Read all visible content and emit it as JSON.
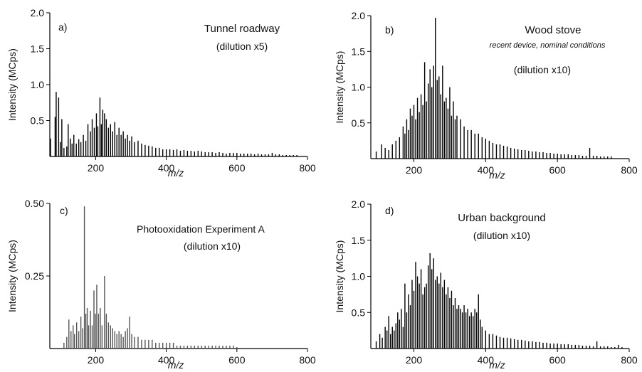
{
  "chart_data": [
    {
      "id": "a",
      "type": "bar",
      "panel_label": "a)",
      "title": "Tunnel roadway",
      "subtitle": "(dilution x5)",
      "note": "",
      "xlabel": "m/z",
      "ylabel": "Intensity (MCps)",
      "xlim": [
        70,
        800
      ],
      "ylim": [
        0,
        2.0
      ],
      "xticks": [
        200,
        400,
        600,
        800
      ],
      "yticks": [
        0.5,
        1.0,
        1.5,
        2.0
      ],
      "ytick_labels": [
        "0.5",
        "1.0",
        "1.5",
        "2.0"
      ],
      "color": "#000000",
      "peaks": [
        [
          72,
          0.25
        ],
        [
          85,
          0.55
        ],
        [
          88,
          0.9
        ],
        [
          95,
          0.82
        ],
        [
          100,
          0.2
        ],
        [
          104,
          0.52
        ],
        [
          110,
          0.12
        ],
        [
          118,
          0.14
        ],
        [
          122,
          0.45
        ],
        [
          128,
          0.25
        ],
        [
          133,
          0.18
        ],
        [
          138,
          0.3
        ],
        [
          145,
          0.18
        ],
        [
          152,
          0.24
        ],
        [
          158,
          0.2
        ],
        [
          165,
          0.3
        ],
        [
          172,
          0.22
        ],
        [
          178,
          0.45
        ],
        [
          185,
          0.35
        ],
        [
          190,
          0.52
        ],
        [
          196,
          0.4
        ],
        [
          202,
          0.6
        ],
        [
          206,
          0.42
        ],
        [
          212,
          0.82
        ],
        [
          216,
          0.45
        ],
        [
          220,
          0.65
        ],
        [
          225,
          0.6
        ],
        [
          230,
          0.52
        ],
        [
          236,
          0.4
        ],
        [
          242,
          0.45
        ],
        [
          248,
          0.35
        ],
        [
          254,
          0.48
        ],
        [
          260,
          0.3
        ],
        [
          266,
          0.4
        ],
        [
          272,
          0.3
        ],
        [
          278,
          0.35
        ],
        [
          284,
          0.25
        ],
        [
          290,
          0.3
        ],
        [
          296,
          0.22
        ],
        [
          302,
          0.28
        ],
        [
          310,
          0.2
        ],
        [
          320,
          0.22
        ],
        [
          330,
          0.18
        ],
        [
          340,
          0.16
        ],
        [
          350,
          0.15
        ],
        [
          360,
          0.14
        ],
        [
          370,
          0.12
        ],
        [
          380,
          0.12
        ],
        [
          390,
          0.1
        ],
        [
          400,
          0.1
        ],
        [
          410,
          0.1
        ],
        [
          420,
          0.09
        ],
        [
          430,
          0.1
        ],
        [
          440,
          0.08
        ],
        [
          450,
          0.09
        ],
        [
          460,
          0.08
        ],
        [
          470,
          0.08
        ],
        [
          480,
          0.07
        ],
        [
          490,
          0.08
        ],
        [
          500,
          0.07
        ],
        [
          510,
          0.06
        ],
        [
          520,
          0.06
        ],
        [
          530,
          0.06
        ],
        [
          540,
          0.05
        ],
        [
          550,
          0.06
        ],
        [
          560,
          0.05
        ],
        [
          570,
          0.04
        ],
        [
          580,
          0.05
        ],
        [
          590,
          0.05
        ],
        [
          600,
          0.05
        ],
        [
          610,
          0.04
        ],
        [
          620,
          0.04
        ],
        [
          630,
          0.04
        ],
        [
          640,
          0.04
        ],
        [
          650,
          0.03
        ],
        [
          660,
          0.04
        ],
        [
          670,
          0.03
        ],
        [
          680,
          0.03
        ],
        [
          690,
          0.03
        ],
        [
          700,
          0.05
        ],
        [
          710,
          0.03
        ],
        [
          720,
          0.03
        ],
        [
          730,
          0.02
        ],
        [
          740,
          0.02
        ],
        [
          750,
          0.02
        ],
        [
          760,
          0.02
        ],
        [
          770,
          0.02
        ]
      ]
    },
    {
      "id": "b",
      "type": "bar",
      "panel_label": "b)",
      "title": "Wood stove",
      "subtitle": "(dilution x10)",
      "note": "recent device, nominal conditions",
      "xlabel": "m/z",
      "ylabel": "Intensity (MCps)",
      "xlim": [
        80,
        800
      ],
      "ylim": [
        0,
        2.0
      ],
      "xticks": [
        200,
        400,
        600,
        800
      ],
      "yticks": [
        0.5,
        1.0,
        1.5,
        2.0
      ],
      "ytick_labels": [
        "0.5",
        "1.0",
        "1.5",
        "2.0"
      ],
      "color": "#000000",
      "peaks": [
        [
          95,
          0.1
        ],
        [
          110,
          0.2
        ],
        [
          120,
          0.15
        ],
        [
          130,
          0.12
        ],
        [
          140,
          0.2
        ],
        [
          150,
          0.25
        ],
        [
          160,
          0.3
        ],
        [
          170,
          0.45
        ],
        [
          175,
          0.35
        ],
        [
          180,
          0.55
        ],
        [
          185,
          0.4
        ],
        [
          190,
          0.7
        ],
        [
          195,
          0.6
        ],
        [
          200,
          0.75
        ],
        [
          205,
          0.55
        ],
        [
          210,
          0.85
        ],
        [
          215,
          0.65
        ],
        [
          220,
          0.9
        ],
        [
          225,
          0.75
        ],
        [
          230,
          1.35
        ],
        [
          235,
          0.8
        ],
        [
          240,
          1.05
        ],
        [
          245,
          1.25
        ],
        [
          250,
          1.0
        ],
        [
          255,
          1.3
        ],
        [
          260,
          1.97
        ],
        [
          265,
          1.1
        ],
        [
          270,
          1.15
        ],
        [
          275,
          0.9
        ],
        [
          280,
          1.3
        ],
        [
          285,
          0.8
        ],
        [
          290,
          0.85
        ],
        [
          295,
          0.7
        ],
        [
          300,
          1.0
        ],
        [
          305,
          0.6
        ],
        [
          310,
          0.8
        ],
        [
          315,
          0.55
        ],
        [
          320,
          0.6
        ],
        [
          330,
          0.55
        ],
        [
          340,
          0.45
        ],
        [
          350,
          0.4
        ],
        [
          360,
          0.4
        ],
        [
          370,
          0.35
        ],
        [
          380,
          0.35
        ],
        [
          390,
          0.3
        ],
        [
          400,
          0.28
        ],
        [
          410,
          0.25
        ],
        [
          420,
          0.22
        ],
        [
          430,
          0.2
        ],
        [
          440,
          0.2
        ],
        [
          450,
          0.18
        ],
        [
          460,
          0.17
        ],
        [
          470,
          0.15
        ],
        [
          480,
          0.14
        ],
        [
          490,
          0.13
        ],
        [
          500,
          0.12
        ],
        [
          510,
          0.12
        ],
        [
          520,
          0.11
        ],
        [
          530,
          0.1
        ],
        [
          540,
          0.1
        ],
        [
          550,
          0.09
        ],
        [
          560,
          0.09
        ],
        [
          570,
          0.08
        ],
        [
          580,
          0.08
        ],
        [
          590,
          0.07
        ],
        [
          600,
          0.07
        ],
        [
          610,
          0.06
        ],
        [
          620,
          0.06
        ],
        [
          630,
          0.06
        ],
        [
          640,
          0.05
        ],
        [
          650,
          0.05
        ],
        [
          660,
          0.05
        ],
        [
          670,
          0.04
        ],
        [
          680,
          0.04
        ],
        [
          690,
          0.15
        ],
        [
          700,
          0.04
        ],
        [
          710,
          0.04
        ],
        [
          720,
          0.03
        ],
        [
          730,
          0.03
        ],
        [
          740,
          0.03
        ],
        [
          750,
          0.03
        ]
      ]
    },
    {
      "id": "c",
      "type": "bar",
      "panel_label": "c)",
      "title": "Photooxidation Experiment A",
      "subtitle": "(dilution x10)",
      "note": "",
      "xlabel": "m/z",
      "ylabel": "Intensity (MCps)",
      "xlim": [
        70,
        800
      ],
      "ylim": [
        0,
        0.5
      ],
      "xticks": [
        200,
        400,
        600,
        800
      ],
      "yticks": [
        0.25,
        0.5
      ],
      "ytick_labels": [
        "0.25",
        "0.50"
      ],
      "color": "#555555",
      "peaks": [
        [
          110,
          0.02
        ],
        [
          118,
          0.04
        ],
        [
          124,
          0.1
        ],
        [
          130,
          0.06
        ],
        [
          136,
          0.08
        ],
        [
          140,
          0.05
        ],
        [
          146,
          0.09
        ],
        [
          152,
          0.06
        ],
        [
          158,
          0.11
        ],
        [
          163,
          0.07
        ],
        [
          168,
          0.49
        ],
        [
          172,
          0.12
        ],
        [
          176,
          0.14
        ],
        [
          180,
          0.08
        ],
        [
          185,
          0.13
        ],
        [
          190,
          0.08
        ],
        [
          195,
          0.2
        ],
        [
          199,
          0.12
        ],
        [
          203,
          0.22
        ],
        [
          208,
          0.12
        ],
        [
          213,
          0.14
        ],
        [
          218,
          0.08
        ],
        [
          225,
          0.25
        ],
        [
          230,
          0.12
        ],
        [
          236,
          0.09
        ],
        [
          242,
          0.08
        ],
        [
          248,
          0.07
        ],
        [
          254,
          0.06
        ],
        [
          260,
          0.05
        ],
        [
          266,
          0.06
        ],
        [
          272,
          0.05
        ],
        [
          278,
          0.04
        ],
        [
          284,
          0.06
        ],
        [
          290,
          0.07
        ],
        [
          296,
          0.11
        ],
        [
          302,
          0.05
        ],
        [
          310,
          0.04
        ],
        [
          320,
          0.04
        ],
        [
          330,
          0.03
        ],
        [
          340,
          0.03
        ],
        [
          350,
          0.03
        ],
        [
          360,
          0.03
        ],
        [
          370,
          0.02
        ],
        [
          380,
          0.02
        ],
        [
          390,
          0.02
        ],
        [
          400,
          0.02
        ],
        [
          410,
          0.02
        ],
        [
          420,
          0.02
        ],
        [
          430,
          0.01
        ],
        [
          440,
          0.01
        ],
        [
          450,
          0.01
        ],
        [
          460,
          0.01
        ],
        [
          470,
          0.01
        ],
        [
          480,
          0.01
        ],
        [
          490,
          0.01
        ],
        [
          500,
          0.01
        ],
        [
          510,
          0.01
        ],
        [
          520,
          0.01
        ],
        [
          530,
          0.01
        ],
        [
          540,
          0.01
        ],
        [
          550,
          0.01
        ],
        [
          560,
          0.01
        ],
        [
          570,
          0.01
        ],
        [
          580,
          0.01
        ],
        [
          590,
          0.01
        ],
        [
          600,
          0.005
        ]
      ]
    },
    {
      "id": "d",
      "type": "bar",
      "panel_label": "d)",
      "title": "Urban background",
      "subtitle": "(dilution x10)",
      "note": "",
      "xlabel": "m/z",
      "ylabel": "Intensity (MCps)",
      "xlim": [
        80,
        800
      ],
      "ylim": [
        0,
        2.0
      ],
      "xticks": [
        200,
        400,
        600,
        800
      ],
      "yticks": [
        0.5,
        1.0,
        1.5,
        2.0
      ],
      "ytick_labels": [
        "0.5",
        "1.0",
        "1.5",
        "2.0"
      ],
      "color": "#000000",
      "peaks": [
        [
          95,
          0.1
        ],
        [
          105,
          0.2
        ],
        [
          112,
          0.15
        ],
        [
          120,
          0.3
        ],
        [
          125,
          0.25
        ],
        [
          130,
          0.45
        ],
        [
          135,
          0.2
        ],
        [
          140,
          0.3
        ],
        [
          145,
          0.25
        ],
        [
          150,
          0.35
        ],
        [
          155,
          0.5
        ],
        [
          160,
          0.4
        ],
        [
          165,
          0.55
        ],
        [
          170,
          0.3
        ],
        [
          175,
          0.9
        ],
        [
          180,
          0.5
        ],
        [
          185,
          0.75
        ],
        [
          190,
          0.6
        ],
        [
          195,
          0.95
        ],
        [
          200,
          0.8
        ],
        [
          205,
          1.2
        ],
        [
          210,
          1.0
        ],
        [
          215,
          0.9
        ],
        [
          220,
          1.1
        ],
        [
          225,
          0.75
        ],
        [
          230,
          0.85
        ],
        [
          235,
          0.9
        ],
        [
          240,
          1.15
        ],
        [
          245,
          1.32
        ],
        [
          250,
          1.1
        ],
        [
          255,
          1.25
        ],
        [
          260,
          0.95
        ],
        [
          265,
          1.0
        ],
        [
          270,
          0.9
        ],
        [
          275,
          1.05
        ],
        [
          280,
          0.85
        ],
        [
          285,
          0.95
        ],
        [
          290,
          0.75
        ],
        [
          295,
          0.85
        ],
        [
          300,
          0.7
        ],
        [
          305,
          0.8
        ],
        [
          310,
          0.6
        ],
        [
          315,
          0.7
        ],
        [
          320,
          0.55
        ],
        [
          325,
          0.6
        ],
        [
          330,
          0.55
        ],
        [
          335,
          0.5
        ],
        [
          340,
          0.6
        ],
        [
          345,
          0.5
        ],
        [
          350,
          0.55
        ],
        [
          355,
          0.45
        ],
        [
          360,
          0.5
        ],
        [
          365,
          0.45
        ],
        [
          370,
          0.55
        ],
        [
          375,
          0.5
        ],
        [
          380,
          0.75
        ],
        [
          385,
          0.4
        ],
        [
          390,
          0.3
        ],
        [
          400,
          0.25
        ],
        [
          410,
          0.2
        ],
        [
          420,
          0.2
        ],
        [
          430,
          0.18
        ],
        [
          440,
          0.16
        ],
        [
          450,
          0.15
        ],
        [
          460,
          0.15
        ],
        [
          470,
          0.14
        ],
        [
          480,
          0.13
        ],
        [
          490,
          0.12
        ],
        [
          500,
          0.12
        ],
        [
          510,
          0.11
        ],
        [
          520,
          0.1
        ],
        [
          530,
          0.1
        ],
        [
          540,
          0.09
        ],
        [
          550,
          0.09
        ],
        [
          560,
          0.08
        ],
        [
          570,
          0.08
        ],
        [
          580,
          0.07
        ],
        [
          590,
          0.07
        ],
        [
          600,
          0.07
        ],
        [
          610,
          0.06
        ],
        [
          620,
          0.06
        ],
        [
          630,
          0.06
        ],
        [
          640,
          0.05
        ],
        [
          650,
          0.05
        ],
        [
          660,
          0.05
        ],
        [
          670,
          0.04
        ],
        [
          680,
          0.04
        ],
        [
          690,
          0.04
        ],
        [
          700,
          0.03
        ],
        [
          710,
          0.1
        ],
        [
          720,
          0.03
        ],
        [
          730,
          0.03
        ],
        [
          740,
          0.03
        ],
        [
          750,
          0.02
        ],
        [
          760,
          0.02
        ],
        [
          770,
          0.05
        ],
        [
          780,
          0.02
        ]
      ]
    }
  ]
}
